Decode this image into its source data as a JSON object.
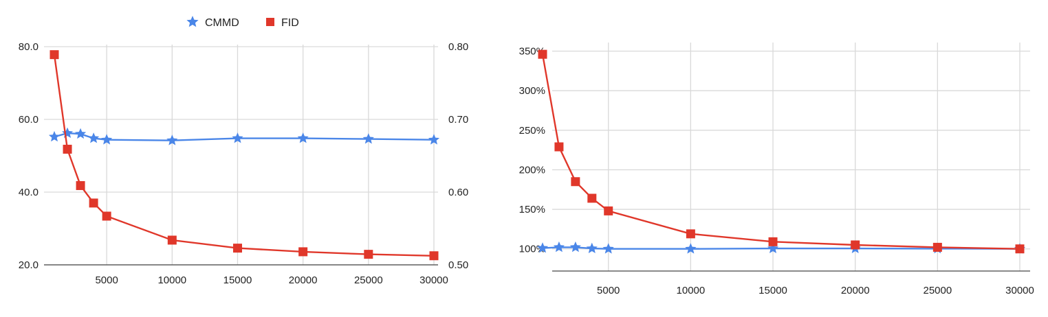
{
  "legend": [
    {
      "name": "CMMD",
      "color": "#4a86e8",
      "marker": "star-icon"
    },
    {
      "name": "FID",
      "color": "#e0372a",
      "marker": "square-icon"
    }
  ],
  "chart_data": [
    {
      "type": "line",
      "legend_position": "top",
      "grid": true,
      "x": [
        1000,
        2000,
        3000,
        4000,
        5000,
        10000,
        15000,
        20000,
        25000,
        30000
      ],
      "x_ticks": [
        5000,
        10000,
        15000,
        20000,
        25000,
        30000
      ],
      "x_tick_labels": [
        "5000",
        "10000",
        "15000",
        "20000",
        "25000",
        "30000"
      ],
      "ylim_left": [
        20,
        80
      ],
      "y_left_ticks": [
        20,
        40,
        60,
        80
      ],
      "y_left_tick_labels": [
        "20.0",
        "40.0",
        "60.0",
        "80.0"
      ],
      "ylim_right": [
        0.5,
        0.8
      ],
      "y_right_ticks": [
        0.5,
        0.6,
        0.7,
        0.8
      ],
      "y_right_tick_labels": [
        "0.50",
        "0.60",
        "0.70",
        "0.80"
      ],
      "series": [
        {
          "name": "CMMD",
          "axis": "right",
          "color": "#4a86e8",
          "marker": "star",
          "values": [
            0.676,
            0.681,
            0.68,
            0.674,
            0.672,
            0.671,
            0.674,
            0.674,
            0.673,
            0.672
          ]
        },
        {
          "name": "FID",
          "axis": "left",
          "color": "#e0372a",
          "marker": "square",
          "values": [
            77.8,
            51.8,
            41.8,
            37.0,
            33.4,
            26.8,
            24.6,
            23.6,
            22.9,
            22.5
          ]
        }
      ]
    },
    {
      "type": "line",
      "grid": true,
      "x": [
        1000,
        2000,
        3000,
        4000,
        5000,
        10000,
        15000,
        20000,
        25000,
        30000
      ],
      "x_ticks": [
        5000,
        10000,
        15000,
        20000,
        25000,
        30000
      ],
      "x_tick_labels": [
        "5000",
        "10000",
        "15000",
        "20000",
        "25000",
        "30000"
      ],
      "ylim": [
        72,
        360
      ],
      "y_ticks": [
        100,
        150,
        200,
        250,
        300,
        350
      ],
      "y_tick_labels": [
        "100%",
        "150%",
        "200%",
        "250%",
        "300%",
        "350%"
      ],
      "series": [
        {
          "name": "CMMD",
          "color": "#4a86e8",
          "marker": "star",
          "values": [
            101,
            102,
            102,
            100.5,
            100,
            100,
            100.5,
            100.5,
            100.3,
            100
          ]
        },
        {
          "name": "FID",
          "color": "#e0372a",
          "marker": "square",
          "values": [
            346,
            229,
            185,
            164,
            148,
            119,
            109,
            105,
            102,
            100
          ]
        }
      ]
    }
  ]
}
